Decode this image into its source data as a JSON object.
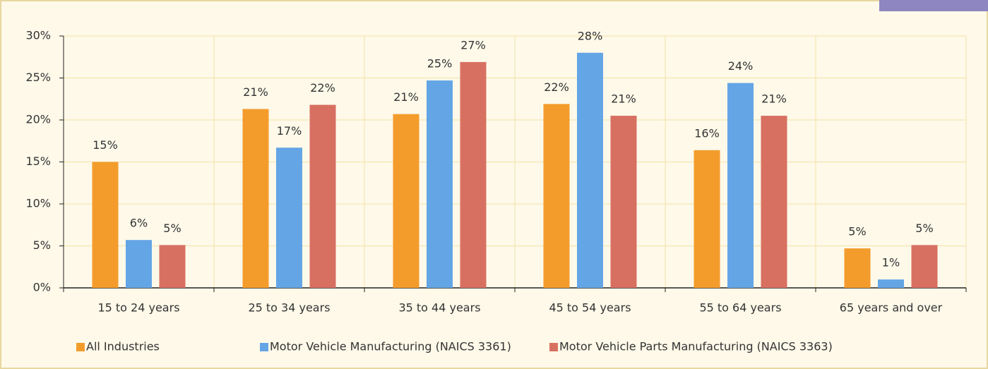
{
  "chart_data": {
    "type": "bar",
    "categories": [
      "15 to 24 years",
      "25 to 34 years",
      "35 to 44 years",
      "45 to 54 years",
      "55 to 64 years",
      "65 years and over"
    ],
    "series": [
      {
        "name": "All Industries",
        "color": "#f39c2c",
        "values": [
          15.0,
          21.3,
          20.7,
          21.9,
          16.4,
          4.7
        ],
        "value_labels": [
          "15%",
          "21%",
          "21%",
          "22%",
          "16%",
          "5%"
        ]
      },
      {
        "name": "Motor Vehicle Manufacturing (NAICS 3361)",
        "color": "#64a5e6",
        "values": [
          5.7,
          16.7,
          24.7,
          28.0,
          24.4,
          1.0
        ],
        "value_labels": [
          "6%",
          "17%",
          "25%",
          "28%",
          "24%",
          "1%"
        ]
      },
      {
        "name": "Motor Vehicle Parts Manufacturing (NAICS 3363)",
        "color": "#d87062",
        "values": [
          5.1,
          21.8,
          26.9,
          20.5,
          20.5,
          5.1
        ],
        "value_labels": [
          "5%",
          "22%",
          "27%",
          "21%",
          "21%",
          "5%"
        ]
      }
    ],
    "ylim": [
      0,
      30
    ],
    "yticks": [
      {
        "value": 0,
        "label": "0%"
      },
      {
        "value": 5,
        "label": "5%"
      },
      {
        "value": 10,
        "label": "10%"
      },
      {
        "value": 15,
        "label": "15%"
      },
      {
        "value": 20,
        "label": "20%"
      },
      {
        "value": 25,
        "label": "25%"
      },
      {
        "value": 30,
        "label": "30%"
      }
    ],
    "grid": true,
    "legend": "bottom"
  }
}
